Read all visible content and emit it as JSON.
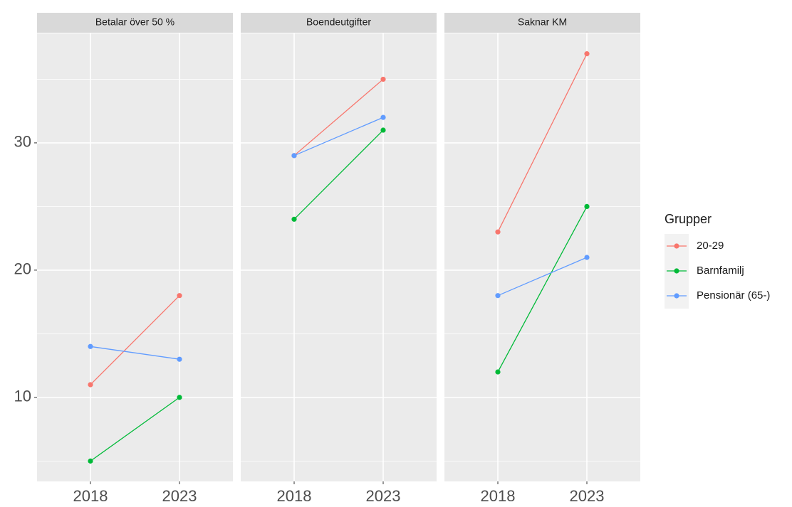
{
  "chart_data": [
    {
      "type": "line",
      "title": "Betalar över 50 %",
      "x": [
        "2018",
        "2023"
      ],
      "series": [
        {
          "name": "20-29",
          "color": "#F8766D",
          "values": [
            11,
            18
          ]
        },
        {
          "name": "Barnfamilj",
          "color": "#00BA38",
          "values": [
            5,
            10
          ]
        },
        {
          "name": "Pensionär (65-)",
          "color": "#619CFF",
          "values": [
            14,
            13
          ]
        }
      ],
      "ylim": [
        3.4,
        38.6
      ],
      "yticks": [
        10,
        20,
        30
      ],
      "yminor": [
        5,
        15,
        25,
        35
      ],
      "grid": true,
      "legend_title": "Grupper",
      "legend": "right"
    },
    {
      "type": "line",
      "title": "Boendeutgifter",
      "x": [
        "2018",
        "2023"
      ],
      "series": [
        {
          "name": "20-29",
          "color": "#F8766D",
          "values": [
            29,
            35
          ]
        },
        {
          "name": "Barnfamilj",
          "color": "#00BA38",
          "values": [
            24,
            31
          ]
        },
        {
          "name": "Pensionär (65-)",
          "color": "#619CFF",
          "values": [
            29,
            32
          ]
        }
      ],
      "ylim": [
        3.4,
        38.6
      ],
      "yticks": [
        10,
        20,
        30
      ],
      "yminor": [
        5,
        15,
        25,
        35
      ],
      "grid": true
    },
    {
      "type": "line",
      "title": "Saknar KM",
      "x": [
        "2018",
        "2023"
      ],
      "series": [
        {
          "name": "20-29",
          "color": "#F8766D",
          "values": [
            23,
            37
          ]
        },
        {
          "name": "Barnfamilj",
          "color": "#00BA38",
          "values": [
            12,
            25
          ]
        },
        {
          "name": "Pensionär (65-)",
          "color": "#619CFF",
          "values": [
            18,
            21
          ]
        }
      ],
      "ylim": [
        3.4,
        38.6
      ],
      "yticks": [
        10,
        20,
        30
      ],
      "yminor": [
        5,
        15,
        25,
        35
      ],
      "grid": true
    }
  ]
}
